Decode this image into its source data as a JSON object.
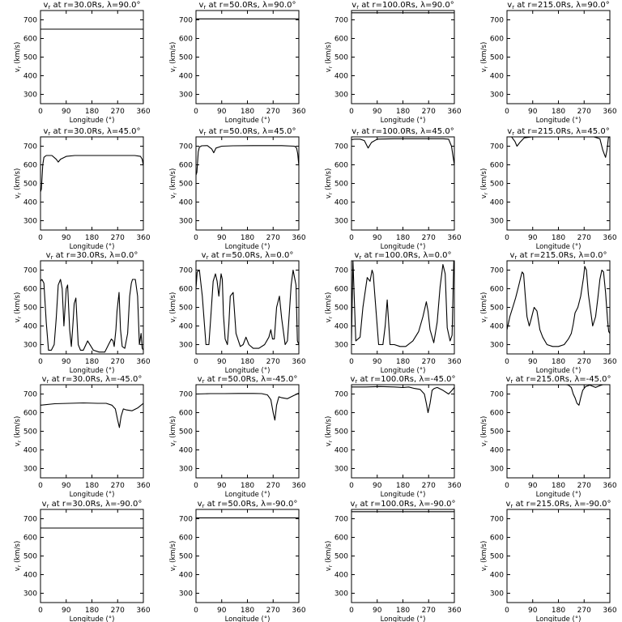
{
  "chart_data": {
    "type": "line",
    "layout": "5x4 grid of panels",
    "xlabel": "Longitude (°)",
    "ylabel": "v_r (km/s)",
    "xlim": [
      0,
      360
    ],
    "ylim": [
      250,
      750
    ],
    "xticks": [
      0,
      90,
      180,
      270,
      360
    ],
    "xtick_labels": [
      "0",
      "90",
      "180",
      "270",
      "360"
    ],
    "yticks": [
      300,
      400,
      500,
      600,
      700
    ],
    "ytick_labels": [
      "300",
      "400",
      "500",
      "600",
      "700"
    ],
    "radii": [
      "30.0Rs",
      "50.0Rs",
      "100.0Rs",
      "215.0Rs"
    ],
    "latitudes": [
      "90.0°",
      "45.0°",
      "0.0°",
      "-45.0°",
      "-90.0°"
    ],
    "panels": [
      {
        "row": 0,
        "col": 0,
        "title": "v_r at r=30.0Rs, λ=90.0°",
        "x": [
          0,
          360
        ],
        "y": [
          650,
          650
        ]
      },
      {
        "row": 0,
        "col": 1,
        "title": "v_r at r=50.0Rs, λ=90.0°",
        "x": [
          0,
          360
        ],
        "y": [
          705,
          705
        ]
      },
      {
        "row": 0,
        "col": 2,
        "title": "v_r at r=100.0Rs, λ=90.0°",
        "x": [
          0,
          360
        ],
        "y": [
          738,
          738
        ]
      },
      {
        "row": 0,
        "col": 3,
        "title": "v_r at r=215.0Rs, λ=90.0°",
        "x": [
          0,
          360
        ],
        "y": [
          752,
          752
        ]
      },
      {
        "row": 1,
        "col": 0,
        "title": "v_r at r=30.0Rs, λ=45.0°",
        "x": [
          0,
          3,
          8,
          12,
          20,
          40,
          55,
          62,
          70,
          90,
          120,
          180,
          250,
          330,
          350,
          356,
          360
        ],
        "y": [
          455,
          470,
          600,
          640,
          650,
          650,
          630,
          615,
          630,
          645,
          650,
          650,
          650,
          650,
          645,
          630,
          595
        ]
      },
      {
        "row": 1,
        "col": 1,
        "title": "v_r at r=50.0Rs, λ=45.0°",
        "x": [
          0,
          3,
          8,
          12,
          20,
          40,
          55,
          62,
          70,
          90,
          130,
          200,
          300,
          345,
          352,
          356,
          360
        ],
        "y": [
          545,
          560,
          670,
          695,
          702,
          703,
          685,
          665,
          690,
          700,
          702,
          703,
          703,
          700,
          690,
          660,
          595
        ]
      },
      {
        "row": 1,
        "col": 2,
        "title": "v_r at r=100.0Rs, λ=45.0°",
        "x": [
          0,
          10,
          30,
          45,
          58,
          70,
          90,
          150,
          250,
          320,
          340,
          350,
          355,
          360
        ],
        "y": [
          735,
          738,
          738,
          730,
          690,
          720,
          738,
          740,
          740,
          740,
          738,
          700,
          650,
          600
        ]
      },
      {
        "row": 1,
        "col": 3,
        "title": "v_r at r=215.0Rs, λ=45.0°",
        "x": [
          0,
          15,
          28,
          35,
          45,
          60,
          100,
          200,
          300,
          325,
          335,
          340,
          345,
          350,
          355,
          360
        ],
        "y": [
          752,
          752,
          725,
          700,
          720,
          745,
          752,
          752,
          752,
          740,
          680,
          660,
          640,
          680,
          745,
          752
        ]
      },
      {
        "row": 2,
        "col": 0,
        "title": "v_r at r=30.0Rs, λ=0.0°",
        "x": [
          0,
          5,
          12,
          20,
          28,
          38,
          48,
          55,
          62,
          70,
          76,
          82,
          90,
          95,
          102,
          108,
          113,
          118,
          124,
          132,
          140,
          150,
          165,
          185,
          205,
          225,
          238,
          248,
          254,
          258,
          264,
          268,
          275,
          280,
          286,
          295,
          305,
          312,
          318,
          322,
          332,
          340,
          346,
          352,
          356,
          360
        ],
        "y": [
          640,
          650,
          630,
          420,
          270,
          270,
          300,
          440,
          620,
          650,
          600,
          400,
          600,
          620,
          380,
          290,
          400,
          520,
          550,
          300,
          270,
          270,
          320,
          270,
          260,
          260,
          300,
          330,
          320,
          290,
          380,
          480,
          580,
          380,
          290,
          280,
          360,
          560,
          630,
          650,
          650,
          560,
          300,
          360,
          280,
          270
        ]
      },
      {
        "row": 2,
        "col": 1,
        "title": "v_r at r=50.0Rs, λ=0.0°",
        "x": [
          0,
          4,
          12,
          22,
          35,
          45,
          52,
          60,
          68,
          74,
          80,
          88,
          92,
          96,
          102,
          110,
          115,
          120,
          130,
          140,
          155,
          165,
          175,
          185,
          200,
          220,
          240,
          255,
          262,
          268,
          274,
          282,
          292,
          300,
          312,
          320,
          328,
          333,
          340,
          350,
          355,
          360
        ],
        "y": [
          600,
          690,
          700,
          560,
          300,
          300,
          450,
          640,
          680,
          640,
          560,
          680,
          650,
          460,
          330,
          300,
          410,
          560,
          580,
          360,
          290,
          300,
          340,
          300,
          280,
          280,
          300,
          340,
          380,
          330,
          330,
          500,
          560,
          440,
          300,
          320,
          500,
          620,
          700,
          620,
          320,
          300
        ]
      },
      {
        "row": 2,
        "col": 2,
        "title": "v_r at r=100.0Rs, λ=0.0°",
        "x": [
          0,
          5,
          15,
          30,
          40,
          55,
          65,
          72,
          76,
          82,
          95,
          110,
          118,
          125,
          135,
          150,
          170,
          190,
          215,
          235,
          250,
          262,
          268,
          275,
          288,
          300,
          310,
          320,
          328,
          335,
          345,
          352,
          358,
          360
        ],
        "y": [
          320,
          750,
          320,
          340,
          500,
          660,
          640,
          700,
          680,
          560,
          300,
          300,
          400,
          540,
          300,
          300,
          290,
          290,
          320,
          370,
          450,
          530,
          480,
          380,
          310,
          420,
          610,
          730,
          680,
          390,
          320,
          350,
          750,
          750
        ]
      },
      {
        "row": 2,
        "col": 3,
        "title": "v_r at r=215.0Rs, λ=0.0°",
        "x": [
          0,
          10,
          20,
          30,
          40,
          48,
          53,
          58,
          64,
          70,
          78,
          85,
          95,
          105,
          115,
          125,
          140,
          160,
          180,
          200,
          215,
          225,
          232,
          238,
          248,
          258,
          268,
          272,
          278,
          285,
          300,
          310,
          318,
          325,
          332,
          338,
          345,
          352,
          356,
          360
        ],
        "y": [
          380,
          450,
          500,
          550,
          610,
          660,
          690,
          680,
          560,
          450,
          400,
          440,
          500,
          480,
          380,
          340,
          300,
          290,
          290,
          300,
          330,
          360,
          410,
          470,
          500,
          560,
          660,
          720,
          700,
          570,
          400,
          450,
          550,
          650,
          700,
          690,
          580,
          430,
          370,
          360
        ]
      },
      {
        "row": 3,
        "col": 0,
        "title": "v_r at r=30.0Rs, λ=-45.0°",
        "x": [
          0,
          50,
          100,
          150,
          200,
          230,
          250,
          262,
          270,
          276,
          282,
          290,
          300,
          320,
          340,
          360
        ],
        "y": [
          640,
          648,
          650,
          652,
          650,
          650,
          640,
          620,
          560,
          520,
          580,
          620,
          615,
          610,
          625,
          650
        ]
      },
      {
        "row": 3,
        "col": 1,
        "title": "v_r at r=50.0Rs, λ=-45.0°",
        "x": [
          0,
          50,
          100,
          150,
          200,
          230,
          250,
          262,
          270,
          276,
          282,
          290,
          300,
          320,
          340,
          360
        ],
        "y": [
          700,
          702,
          702,
          703,
          703,
          702,
          695,
          670,
          600,
          560,
          640,
          685,
          680,
          675,
          690,
          705
        ]
      },
      {
        "row": 3,
        "col": 2,
        "title": "v_r at r=100.0Rs, λ=-45.0°",
        "x": [
          0,
          50,
          100,
          150,
          180,
          200,
          220,
          240,
          255,
          262,
          268,
          275,
          282,
          290,
          300,
          320,
          340,
          352,
          360
        ],
        "y": [
          738,
          738,
          740,
          738,
          735,
          738,
          730,
          725,
          700,
          650,
          600,
          650,
          720,
          730,
          735,
          720,
          700,
          720,
          735
        ]
      },
      {
        "row": 3,
        "col": 3,
        "title": "v_r at r=215.0Rs, λ=-45.0°",
        "x": [
          0,
          50,
          100,
          150,
          180,
          200,
          215,
          225,
          232,
          238,
          245,
          252,
          258,
          265,
          275,
          290,
          310,
          325,
          340,
          360
        ],
        "y": [
          752,
          752,
          752,
          752,
          750,
          752,
          748,
          735,
          700,
          680,
          650,
          640,
          680,
          720,
          740,
          748,
          735,
          745,
          752,
          752
        ]
      },
      {
        "row": 4,
        "col": 0,
        "title": "v_r at r=30.0Rs, λ=-90.0°",
        "x": [
          0,
          360
        ],
        "y": [
          650,
          650
        ]
      },
      {
        "row": 4,
        "col": 1,
        "title": "v_r at r=50.0Rs, λ=-90.0°",
        "x": [
          0,
          360
        ],
        "y": [
          705,
          705
        ]
      },
      {
        "row": 4,
        "col": 2,
        "title": "v_r at r=100.0Rs, λ=-90.0°",
        "x": [
          0,
          360
        ],
        "y": [
          738,
          738
        ]
      },
      {
        "row": 4,
        "col": 3,
        "title": "v_r at r=215.0Rs, λ=-90.0°",
        "x": [
          0,
          360
        ],
        "y": [
          752,
          752
        ]
      }
    ]
  }
}
